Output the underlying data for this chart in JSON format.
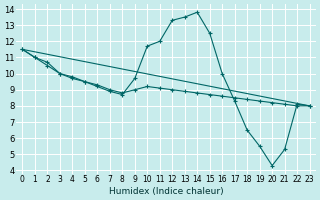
{
  "xlabel": "Humidex (Indice chaleur)",
  "bg_color": "#c8ecec",
  "grid_color": "#ffffff",
  "line_color": "#006666",
  "xlim": [
    -0.5,
    23.5
  ],
  "ylim": [
    3.8,
    14.3
  ],
  "xticks": [
    0,
    1,
    2,
    3,
    4,
    5,
    6,
    7,
    8,
    9,
    10,
    11,
    12,
    13,
    14,
    15,
    16,
    17,
    18,
    19,
    20,
    21,
    22,
    23
  ],
  "yticks": [
    4,
    5,
    6,
    7,
    8,
    9,
    10,
    11,
    12,
    13,
    14
  ],
  "line1_x": [
    0,
    1,
    2,
    3,
    4,
    5,
    6,
    7,
    8,
    9,
    10,
    11,
    12,
    13,
    14,
    15,
    16,
    17,
    18,
    19,
    20,
    21,
    22,
    23
  ],
  "line1_y": [
    11.5,
    11.0,
    10.5,
    10.0,
    9.7,
    9.5,
    9.2,
    8.9,
    8.7,
    9.7,
    11.7,
    12.0,
    13.3,
    13.5,
    13.8,
    12.5,
    10.0,
    8.3,
    6.5,
    5.5,
    4.3,
    5.3,
    8.1,
    8.0
  ],
  "line2_x": [
    0,
    1,
    2,
    3,
    4,
    5,
    6,
    7,
    8,
    9,
    10,
    11,
    12,
    13,
    14,
    15,
    16,
    17,
    18,
    19,
    20,
    21,
    22,
    23
  ],
  "line2_y": [
    11.5,
    11.0,
    10.7,
    10.0,
    9.8,
    9.5,
    9.3,
    9.0,
    8.8,
    9.0,
    9.2,
    9.1,
    9.0,
    8.9,
    8.8,
    8.7,
    8.6,
    8.5,
    8.4,
    8.3,
    8.2,
    8.1,
    8.0,
    8.0
  ],
  "line3_x": [
    0,
    23
  ],
  "line3_y": [
    11.5,
    8.0
  ]
}
